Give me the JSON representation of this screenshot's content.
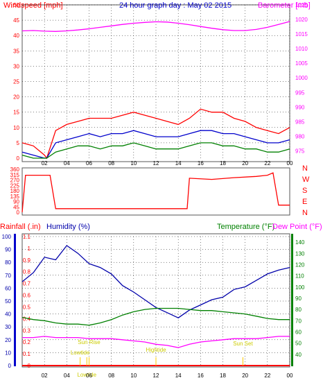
{
  "chart_data": [
    {
      "type": "line",
      "title": "24 hour graph day : May 02 2015",
      "left_axis": {
        "label": "Windspeed [mph]",
        "ticks": [
          0,
          5,
          10,
          15,
          20,
          25,
          30,
          35,
          40,
          45,
          50
        ],
        "ylim": [
          0,
          50
        ]
      },
      "right_axis": {
        "label": "Barometer [mb]",
        "ticks": [
          975,
          980,
          985,
          990,
          995,
          1000,
          1005,
          1010,
          1015,
          1020,
          1025
        ],
        "ylim": [
          972.5,
          1025
        ]
      },
      "x_ticks": [
        "02",
        "04",
        "06",
        "08",
        "10",
        "12",
        "14",
        "16",
        "18",
        "20",
        "22",
        "00"
      ],
      "xlim_hours": [
        0,
        24
      ],
      "grid": true,
      "series": [
        {
          "axis": "right",
          "color": "#ff00ff",
          "x": [
            0,
            1,
            2,
            3,
            4,
            5,
            6,
            7,
            8,
            9,
            10,
            11,
            12,
            13,
            14,
            15,
            16,
            17,
            18,
            19,
            20,
            21,
            22,
            23,
            24
          ],
          "values": [
            1016.1,
            1016.2,
            1016.0,
            1015.9,
            1016.1,
            1016.4,
            1016.8,
            1017.3,
            1017.8,
            1018.3,
            1018.7,
            1019.0,
            1019.2,
            1019.1,
            1018.7,
            1018.2,
            1017.6,
            1017.0,
            1016.5,
            1016.2,
            1016.2,
            1016.6,
            1017.3,
            1018.3,
            1019.3
          ]
        },
        {
          "axis": "left",
          "color": "#ff0000",
          "x": [
            0,
            1,
            2,
            2.2,
            3,
            4,
            5,
            6,
            7,
            8,
            9,
            10,
            11,
            12,
            13,
            14,
            15,
            16,
            17,
            18,
            19,
            20,
            21,
            22,
            23,
            24
          ],
          "values": [
            5,
            4,
            1,
            0,
            9,
            11,
            12,
            13,
            13,
            13,
            14,
            15,
            14,
            13,
            12,
            11,
            13,
            16,
            15,
            15,
            13,
            12,
            10,
            9,
            8,
            10
          ]
        },
        {
          "axis": "left",
          "color": "#0000cc",
          "x": [
            0,
            1,
            2,
            2.2,
            3,
            4,
            5,
            6,
            7,
            8,
            9,
            10,
            11,
            12,
            13,
            14,
            15,
            16,
            17,
            18,
            19,
            20,
            21,
            22,
            23,
            24
          ],
          "values": [
            2,
            1,
            0,
            0,
            5,
            6,
            7,
            8,
            7,
            8,
            8,
            9,
            8,
            7,
            7,
            7,
            8,
            9,
            9,
            8,
            8,
            7,
            6,
            5,
            5,
            6
          ]
        },
        {
          "axis": "left",
          "color": "#008000",
          "x": [
            0,
            1,
            2,
            2.2,
            3,
            4,
            5,
            6,
            7,
            8,
            9,
            10,
            11,
            12,
            13,
            14,
            15,
            16,
            17,
            18,
            19,
            20,
            21,
            22,
            23,
            24
          ],
          "values": [
            1,
            0,
            0,
            0,
            2,
            3,
            4,
            4,
            3,
            4,
            4,
            5,
            4,
            3,
            3,
            3,
            4,
            5,
            5,
            4,
            4,
            3,
            3,
            2,
            2,
            3
          ]
        }
      ]
    },
    {
      "type": "line",
      "right_label": [
        "N",
        "W",
        "S",
        "E",
        "N"
      ],
      "left_axis": {
        "ticks": [
          0,
          45,
          90,
          135,
          180,
          225,
          270,
          315,
          360
        ],
        "ylim": [
          0,
          360
        ]
      },
      "x_ticks": [
        "02",
        "04",
        "06",
        "08",
        "10",
        "12",
        "14",
        "16",
        "18",
        "20",
        "22",
        "00"
      ],
      "xlim_hours": [
        0,
        24
      ],
      "series": [
        {
          "name": "",
          "color": "#ff0000",
          "x": [
            0,
            0.3,
            2.5,
            3,
            5,
            8,
            10,
            12,
            14,
            14.8,
            15,
            17,
            19,
            21,
            22,
            22.5,
            23,
            24
          ],
          "values": [
            0,
            310,
            310,
            30,
            30,
            30,
            30,
            30,
            30,
            30,
            285,
            275,
            290,
            300,
            310,
            330,
            60,
            60
          ]
        }
      ]
    },
    {
      "type": "line",
      "labels": {
        "rainfall": "Rainfall (.in)",
        "humidity": "Humidity (%)",
        "temperature": "Temperature (°F)",
        "dewpoint": "Dew Point (°F)"
      },
      "axes": {
        "humidity": {
          "ticks": [
            0,
            10,
            20,
            30,
            40,
            50,
            60,
            70,
            80,
            90,
            100
          ],
          "ylim": [
            0,
            100
          ]
        },
        "rainfall": {
          "ticks": [
            0,
            0.1,
            0.2,
            0.3,
            0.4,
            0.5,
            0.6,
            0.7,
            0.8,
            0.9,
            1,
            1.1
          ],
          "ylim": [
            0,
            1.1
          ]
        },
        "temperature": {
          "ticks": [
            40,
            50,
            60,
            70,
            80,
            90,
            100,
            110,
            120,
            130,
            140
          ],
          "ylim": [
            30,
            145
          ]
        }
      },
      "x_ticks": [
        "02",
        "04",
        "06",
        "08",
        "10",
        "12",
        "14",
        "16",
        "18",
        "20",
        "22",
        "00"
      ],
      "xlim_hours": [
        0,
        24
      ],
      "annotations": [
        {
          "text": "Sun Rise",
          "hour": 6.0
        },
        {
          "text": "Lowtide",
          "hour": 5.2
        },
        {
          "text": "Lowtide",
          "hour": 5.8
        },
        {
          "text": "Hightide",
          "hour": 12.0
        },
        {
          "text": "Sun Set",
          "hour": 19.8
        }
      ],
      "series": [
        {
          "axis": "humidity",
          "color": "#0000aa",
          "x": [
            0,
            1,
            2,
            3,
            4,
            5,
            6,
            7,
            8,
            9,
            10,
            11,
            12,
            13,
            14,
            15,
            16,
            17,
            18,
            19,
            20,
            21,
            22,
            23,
            24
          ],
          "values": [
            65,
            72,
            84,
            82,
            93,
            87,
            79,
            76,
            71,
            62,
            57,
            51,
            45,
            41,
            37,
            43,
            47,
            51,
            53,
            59,
            61,
            66,
            71,
            74,
            76
          ]
        },
        {
          "axis": "temperature",
          "color": "#008000",
          "x": [
            0,
            1,
            2,
            3,
            4,
            5,
            6,
            7,
            8,
            9,
            10,
            11,
            12,
            13,
            14,
            15,
            16,
            17,
            18,
            19,
            20,
            21,
            22,
            23,
            24
          ],
          "values": [
            73,
            71,
            70,
            68,
            67,
            67,
            66,
            68,
            71,
            75,
            78,
            80,
            81,
            81,
            81,
            80,
            79,
            79,
            78,
            77,
            76,
            74,
            72,
            71,
            71
          ]
        },
        {
          "axis": "temperature",
          "color": "#ff00ff",
          "x": [
            0,
            1,
            2,
            3,
            4,
            5,
            6,
            7,
            8,
            9,
            10,
            11,
            12,
            13,
            14,
            15,
            16,
            17,
            18,
            19,
            20,
            21,
            22,
            23,
            24
          ],
          "values": [
            55,
            55,
            56,
            55,
            55,
            55,
            54,
            54,
            54,
            53,
            52,
            51,
            49,
            48,
            46,
            49,
            51,
            52,
            53,
            54,
            54,
            54,
            55,
            56,
            56
          ]
        },
        {
          "axis": "rainfall",
          "color": "#ff0000",
          "x": [
            0,
            24
          ],
          "values": [
            0,
            0
          ]
        }
      ]
    }
  ]
}
